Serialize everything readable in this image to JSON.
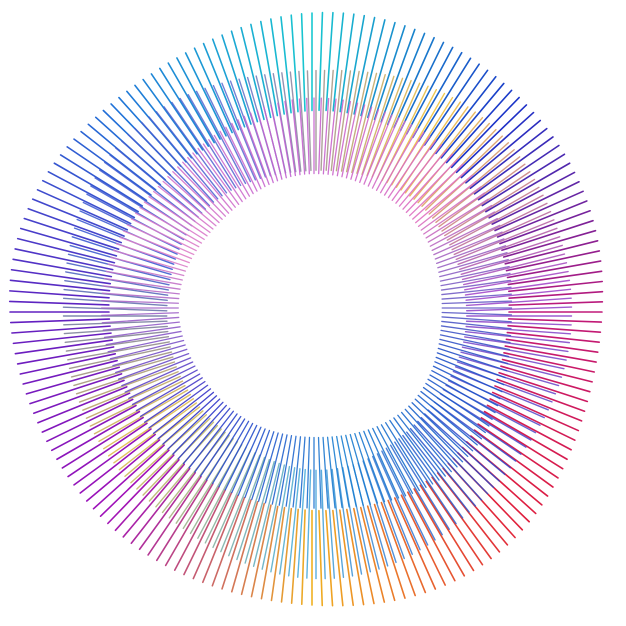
{
  "artwork": {
    "subject": "radial-line-ring",
    "background_color": "#ffffff",
    "rings": [
      {
        "name": "outer-ring",
        "line_count": 180,
        "color_stops": [
          "#18c8d0",
          "#1a30c8",
          "#c01878",
          "#e01e3c",
          "#f0b020",
          "#a010b8",
          "#6020c0",
          "#2070d8",
          "#18c8d0"
        ]
      },
      {
        "name": "middle-ring",
        "line_count": 180,
        "color_stops": [
          "#f0c030",
          "#a040c8",
          "#2848c8",
          "#40a8d8",
          "#e0b840",
          "#3050d0",
          "#5868d0",
          "#f0c030"
        ]
      },
      {
        "name": "inner-ring",
        "line_count": 180,
        "color_stops": [
          "#c060d0",
          "#e070c0",
          "#2050c8",
          "#1a80d0",
          "#3030c8",
          "#e080c8",
          "#c060d0"
        ]
      }
    ]
  }
}
